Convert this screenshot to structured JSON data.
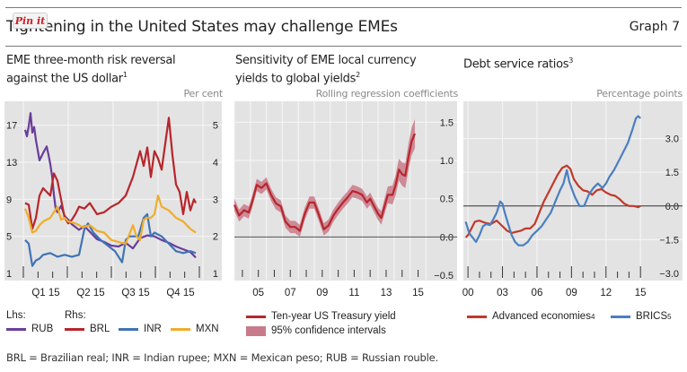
{
  "header": {
    "title": "Tightening in the United States may challenge EMEs",
    "graph_number": "Graph 7",
    "pin_button": "Pin it"
  },
  "footnote": "BRL = Brazilian real; INR = Indian rupee; MXN = Mexican peso; RUB = Russian rouble.",
  "colors": {
    "plot_bg": "#e3e3e3",
    "grid": "#f4f4f4",
    "rub": "#6a3d9a",
    "brl": "#b7262b",
    "inr": "#3f74b5",
    "mxn": "#f0ad2a",
    "ci": "#c97a8a",
    "treasury": "#b7262b",
    "advanced": "#c0392b",
    "brics": "#4a7fc0"
  },
  "panels": {
    "left": {
      "title_line1": "EME three-month risk reversal",
      "title_line2": "against the US dollar",
      "title_sup": "1",
      "unit": "Per cent",
      "lhs_label": "Lhs:",
      "rhs_label": "Rhs:"
    },
    "middle": {
      "title_line1": "Sensitivity of EME local currency",
      "title_line2": "yields to global yields",
      "title_sup": "2",
      "unit": "Rolling regression coefficients"
    },
    "right": {
      "title_line1": "Debt service ratios",
      "title_sup": "3",
      "unit": "Percentage points"
    }
  },
  "chart_data": [
    {
      "type": "line",
      "title": "EME three-month risk reversal against the US dollar",
      "unit": "Per cent",
      "x_range": [
        0,
        1
      ],
      "categories": [
        "Q1 15",
        "Q2 15",
        "Q3 15",
        "Q4 15"
      ],
      "ylim_left": [
        1,
        19
      ],
      "yticks_left": [
        1,
        5,
        9,
        13,
        17
      ],
      "ylim_right": [
        1,
        5.5
      ],
      "yticks_right": [
        1,
        2,
        3,
        4,
        5
      ],
      "grid": true,
      "legend": "bottom",
      "series": [
        {
          "name": "RUB",
          "axis": "left",
          "color_key": "rub",
          "x": [
            0.0,
            0.01,
            0.02,
            0.03,
            0.04,
            0.05,
            0.06,
            0.08,
            0.1,
            0.12,
            0.13,
            0.14,
            0.15,
            0.16,
            0.17,
            0.18,
            0.2,
            0.22,
            0.24,
            0.26,
            0.28,
            0.3,
            0.33,
            0.36,
            0.4,
            0.44,
            0.48,
            0.52,
            0.56,
            0.6,
            0.64,
            0.68,
            0.72,
            0.76,
            0.8,
            0.84,
            0.88,
            0.92,
            0.95
          ],
          "values": [
            16.5,
            15.8,
            16.9,
            18.3,
            16.2,
            16.8,
            15.4,
            13.2,
            14.0,
            14.7,
            13.8,
            12.8,
            11.5,
            9.5,
            8.0,
            7.6,
            8.3,
            7.2,
            6.8,
            6.3,
            6.0,
            5.7,
            6.1,
            5.5,
            4.7,
            4.4,
            4.0,
            3.9,
            4.3,
            3.7,
            4.8,
            5.1,
            5.0,
            4.6,
            4.3,
            3.9,
            3.6,
            3.3,
            2.7
          ]
        },
        {
          "name": "BRL",
          "axis": "right",
          "color_key": "brl",
          "x": [
            0.0,
            0.02,
            0.04,
            0.06,
            0.08,
            0.1,
            0.12,
            0.14,
            0.16,
            0.18,
            0.2,
            0.22,
            0.24,
            0.26,
            0.28,
            0.3,
            0.33,
            0.36,
            0.4,
            0.44,
            0.48,
            0.52,
            0.56,
            0.6,
            0.64,
            0.66,
            0.68,
            0.7,
            0.72,
            0.74,
            0.76,
            0.78,
            0.8,
            0.82,
            0.84,
            0.86,
            0.88,
            0.9,
            0.92,
            0.94,
            0.95
          ],
          "values": [
            2.9,
            2.85,
            2.2,
            2.5,
            3.1,
            3.3,
            3.2,
            3.1,
            3.7,
            3.5,
            3.0,
            2.5,
            2.35,
            2.45,
            2.6,
            2.8,
            2.75,
            2.9,
            2.6,
            2.65,
            2.8,
            2.9,
            3.1,
            3.6,
            4.3,
            3.9,
            4.4,
            3.6,
            4.3,
            4.1,
            3.8,
            4.5,
            5.2,
            4.2,
            3.4,
            3.2,
            2.6,
            3.2,
            2.7,
            3.0,
            2.9
          ]
        },
        {
          "name": "INR",
          "axis": "right",
          "color_key": "inr",
          "x": [
            0.0,
            0.02,
            0.04,
            0.06,
            0.08,
            0.1,
            0.14,
            0.18,
            0.22,
            0.26,
            0.3,
            0.33,
            0.35,
            0.38,
            0.42,
            0.46,
            0.5,
            0.54,
            0.56,
            0.58,
            0.6,
            0.63,
            0.66,
            0.68,
            0.7,
            0.72,
            0.74,
            0.76,
            0.8,
            0.84,
            0.88,
            0.92,
            0.95
          ],
          "values": [
            1.9,
            1.8,
            1.2,
            1.35,
            1.4,
            1.5,
            1.55,
            1.45,
            1.5,
            1.45,
            1.5,
            2.2,
            2.35,
            2.1,
            1.9,
            1.75,
            1.6,
            1.3,
            1.9,
            2.0,
            2.0,
            2.0,
            2.5,
            2.6,
            2.0,
            2.1,
            2.05,
            2.0,
            1.8,
            1.6,
            1.55,
            1.6,
            1.55
          ]
        },
        {
          "name": "MXN",
          "axis": "right",
          "color_key": "mxn",
          "x": [
            0.0,
            0.02,
            0.04,
            0.06,
            0.08,
            0.1,
            0.14,
            0.18,
            0.2,
            0.22,
            0.24,
            0.28,
            0.32,
            0.36,
            0.4,
            0.44,
            0.48,
            0.52,
            0.56,
            0.6,
            0.62,
            0.64,
            0.66,
            0.68,
            0.7,
            0.72,
            0.74,
            0.76,
            0.8,
            0.84,
            0.88,
            0.92,
            0.95
          ],
          "values": [
            2.75,
            2.5,
            2.1,
            2.15,
            2.3,
            2.4,
            2.5,
            2.8,
            2.45,
            2.5,
            2.4,
            2.35,
            2.25,
            2.3,
            2.15,
            2.1,
            1.9,
            1.85,
            1.8,
            2.3,
            2.0,
            1.9,
            2.45,
            2.5,
            2.5,
            2.6,
            3.1,
            2.8,
            2.7,
            2.5,
            2.4,
            2.2,
            2.1
          ]
        }
      ]
    },
    {
      "type": "line",
      "title": "Sensitivity of EME local currency yields to global yields",
      "unit": "Rolling regression coefficients",
      "xlim": [
        2004.0,
        2016.2
      ],
      "xticks": [
        "05",
        "07",
        "09",
        "11",
        "13",
        "15"
      ],
      "xtick_values": [
        2005,
        2007,
        2009,
        2011,
        2013,
        2015
      ],
      "ylim": [
        -0.5,
        1.75
      ],
      "yticks": [
        -0.5,
        0.0,
        0.5,
        1.0,
        1.5
      ],
      "grid": true,
      "legend": "bottom",
      "series": [
        {
          "name": "Ten-year US Treasury yield",
          "color_key": "treasury",
          "x": [
            2004.0,
            2004.3,
            2004.6,
            2004.9,
            2005.1,
            2005.4,
            2005.7,
            2006.0,
            2006.3,
            2006.6,
            2006.9,
            2007.2,
            2007.5,
            2007.8,
            2008.1,
            2008.4,
            2008.7,
            2009.0,
            2009.3,
            2009.6,
            2009.9,
            2010.2,
            2010.5,
            2010.8,
            2011.1,
            2011.4,
            2011.7,
            2012.0,
            2012.3,
            2012.5,
            2012.7,
            2013.0,
            2013.2,
            2013.4,
            2013.6,
            2013.9,
            2014.1,
            2014.3,
            2014.5,
            2014.7,
            2014.9,
            2015.1,
            2015.3
          ],
          "values": [
            0.42,
            0.28,
            0.35,
            0.32,
            0.45,
            0.68,
            0.64,
            0.7,
            0.55,
            0.44,
            0.4,
            0.2,
            0.13,
            0.13,
            0.08,
            0.3,
            0.45,
            0.45,
            0.28,
            0.1,
            0.15,
            0.28,
            0.37,
            0.45,
            0.52,
            0.6,
            0.58,
            0.55,
            0.45,
            0.5,
            0.42,
            0.3,
            0.25,
            0.4,
            0.55,
            0.55,
            0.68,
            0.88,
            0.82,
            0.8,
            1.05,
            1.25,
            1.35
          ]
        },
        {
          "name": "95% confidence intervals",
          "type": "band",
          "color_key": "ci",
          "half_width": 0.08
        }
      ]
    },
    {
      "type": "line",
      "title": "Debt service ratios",
      "unit": "Percentage points",
      "xlim": [
        1999.6,
        2016.0
      ],
      "xticks": [
        "00",
        "03",
        "06",
        "09",
        "12",
        "15"
      ],
      "xtick_values": [
        2000,
        2003,
        2006,
        2009,
        2012,
        2015
      ],
      "ylim": [
        -3.0,
        4.5
      ],
      "yticks": [
        -3.0,
        -1.5,
        0.0,
        1.5,
        3.0
      ],
      "grid": true,
      "legend": "bottom",
      "series": [
        {
          "name": "Advanced economies",
          "name_sup": "4",
          "color_key": "advanced",
          "x": [
            1999.8,
            2000.0,
            2000.3,
            2000.6,
            2001.0,
            2001.5,
            2002.0,
            2002.5,
            2003.0,
            2003.4,
            2003.8,
            2004.2,
            2004.6,
            2005.0,
            2005.4,
            2005.8,
            2006.2,
            2006.6,
            2007.0,
            2007.4,
            2007.8,
            2008.2,
            2008.6,
            2008.9,
            2009.2,
            2009.6,
            2010.0,
            2010.4,
            2010.8,
            2011.2,
            2011.6,
            2012.0,
            2012.4,
            2012.8,
            2013.2,
            2013.6,
            2014.0,
            2014.4,
            2014.8,
            2015.0
          ],
          "values": [
            -1.4,
            -1.3,
            -1.0,
            -0.7,
            -0.65,
            -0.75,
            -0.8,
            -0.65,
            -0.9,
            -1.1,
            -1.2,
            -1.15,
            -1.1,
            -1.0,
            -1.0,
            -0.8,
            -0.3,
            0.2,
            0.6,
            1.0,
            1.4,
            1.7,
            1.8,
            1.65,
            1.2,
            0.9,
            0.7,
            0.65,
            0.5,
            0.7,
            0.75,
            0.6,
            0.5,
            0.45,
            0.3,
            0.1,
            0.0,
            0.0,
            -0.05,
            0.0
          ]
        },
        {
          "name": "BRICS",
          "name_sup": "5",
          "color_key": "brics",
          "x": [
            1999.8,
            2000.1,
            2000.4,
            2000.7,
            2001.0,
            2001.3,
            2001.6,
            2001.9,
            2002.2,
            2002.5,
            2002.8,
            2003.0,
            2003.2,
            2003.5,
            2003.8,
            2004.1,
            2004.4,
            2004.8,
            2005.2,
            2005.6,
            2006.0,
            2006.4,
            2006.8,
            2007.2,
            2007.6,
            2008.0,
            2008.3,
            2008.6,
            2008.8,
            2009.0,
            2009.3,
            2009.7,
            2010.1,
            2010.5,
            2010.9,
            2011.3,
            2011.7,
            2012.0,
            2012.3,
            2012.7,
            2013.1,
            2013.5,
            2013.9,
            2014.3,
            2014.6,
            2014.8,
            2015.0
          ],
          "values": [
            -0.7,
            -1.2,
            -1.4,
            -1.6,
            -1.3,
            -0.9,
            -0.8,
            -0.85,
            -0.6,
            -0.3,
            0.2,
            0.1,
            -0.3,
            -0.8,
            -1.3,
            -1.6,
            -1.75,
            -1.75,
            -1.6,
            -1.3,
            -1.1,
            -0.9,
            -0.6,
            -0.3,
            0.2,
            0.7,
            1.0,
            1.6,
            1.1,
            0.8,
            0.4,
            0.0,
            0.0,
            0.5,
            0.8,
            1.0,
            0.8,
            1.0,
            1.3,
            1.6,
            2.0,
            2.4,
            2.8,
            3.4,
            3.9,
            4.0,
            3.9
          ]
        }
      ]
    }
  ]
}
